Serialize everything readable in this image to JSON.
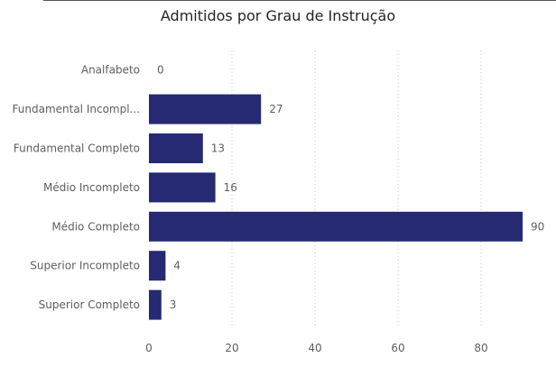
{
  "chart_data": {
    "type": "bar",
    "orientation": "horizontal",
    "title": "Admitidos por Grau de Instrução",
    "categories": [
      "Analfabeto",
      "Fundamental Incompl...",
      "Fundamental Completo",
      "Médio Incompleto",
      "Médio Completo",
      "Superior Incompleto",
      "Superior Completo"
    ],
    "values": [
      0,
      27,
      13,
      16,
      90,
      4,
      3
    ],
    "xticks": [
      "0",
      "20",
      "40",
      "60",
      "80"
    ],
    "xlim": [
      0,
      90
    ],
    "grid": "vertical dotted",
    "bar_color": "#252a72",
    "data_labels": true
  }
}
